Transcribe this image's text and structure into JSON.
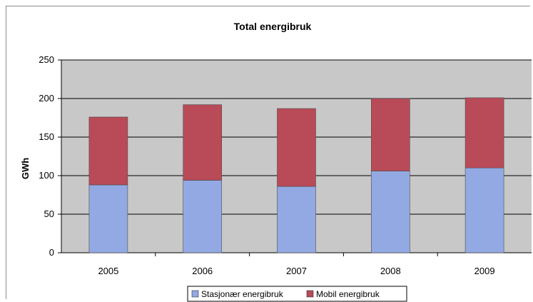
{
  "chart_data": {
    "type": "bar",
    "stacked": true,
    "title": "Total energibruk",
    "xlabel": "",
    "ylabel": "GWh",
    "categories": [
      "2005",
      "2006",
      "2007",
      "2008",
      "2009"
    ],
    "series": [
      {
        "name": "Stasjonær energibruk",
        "values": [
          88,
          94,
          86,
          106,
          110
        ],
        "color": "#93a9e3"
      },
      {
        "name": "Mobil energibruk",
        "values": [
          88,
          98,
          101,
          94,
          91
        ],
        "color": "#b94a57"
      }
    ],
    "ylim": [
      0,
      250
    ],
    "yticks": [
      "0",
      "50",
      "100",
      "150",
      "200",
      "250"
    ],
    "grid": true,
    "legend": "bottom",
    "plot_background": "#c8c8c8"
  }
}
